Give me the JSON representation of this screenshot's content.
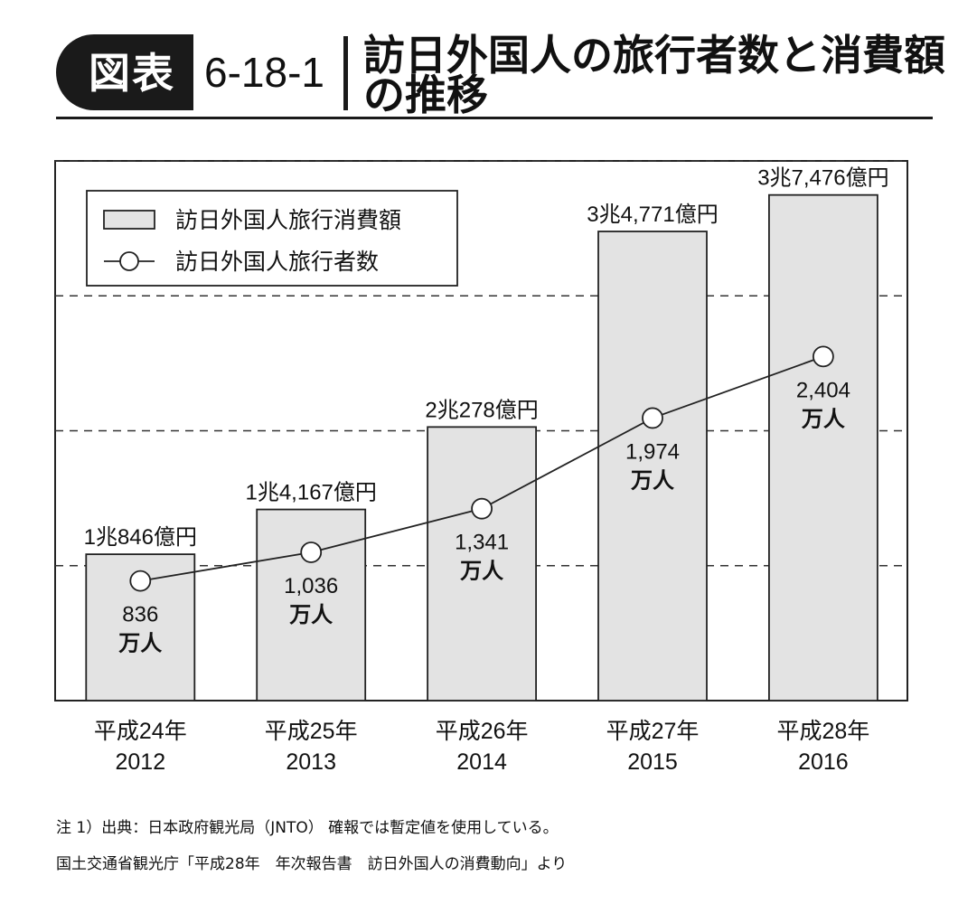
{
  "header": {
    "badge": "図表",
    "figure_number": "6-18-1",
    "title_line1": "訪日外国人の旅行者数と消費額",
    "title_line2": "の推移"
  },
  "chart_data": {
    "type": "bar",
    "categories": [
      [
        "平成24年",
        "2012"
      ],
      [
        "平成25年",
        "2013"
      ],
      [
        "平成26年",
        "2014"
      ],
      [
        "平成27年",
        "2015"
      ],
      [
        "平成28年",
        "2016"
      ]
    ],
    "series": [
      {
        "name": "訪日外国人旅行消費額",
        "type": "bar",
        "values": [
          10846,
          14167,
          20278,
          34771,
          37476
        ],
        "labels": [
          "1兆846億円",
          "1兆4,167億円",
          "2兆278億円",
          "3兆4,771億円",
          "3兆7,476億円"
        ]
      },
      {
        "name": "訪日外国人旅行者数",
        "type": "line",
        "values": [
          836,
          1036,
          1341,
          1974,
          2404
        ],
        "labels": [
          [
            "836",
            "万人"
          ],
          [
            "1,036",
            "万人"
          ],
          [
            "1,341",
            "万人"
          ],
          [
            "1,974",
            "万人"
          ],
          [
            "2,404",
            "万人"
          ]
        ]
      }
    ],
    "grid": "dashed horizontal",
    "legend": "top-left",
    "ylim_bars": [
      0,
      40000
    ],
    "ylim_line": [
      0,
      3000
    ]
  },
  "notes": {
    "line1": "注 1）出典：日本政府観光局（JNTO） 確報では暫定値を使用している。",
    "line2": "国土交通省観光庁「平成28年　年次報告書　訪日外国人の消費動向」より"
  }
}
